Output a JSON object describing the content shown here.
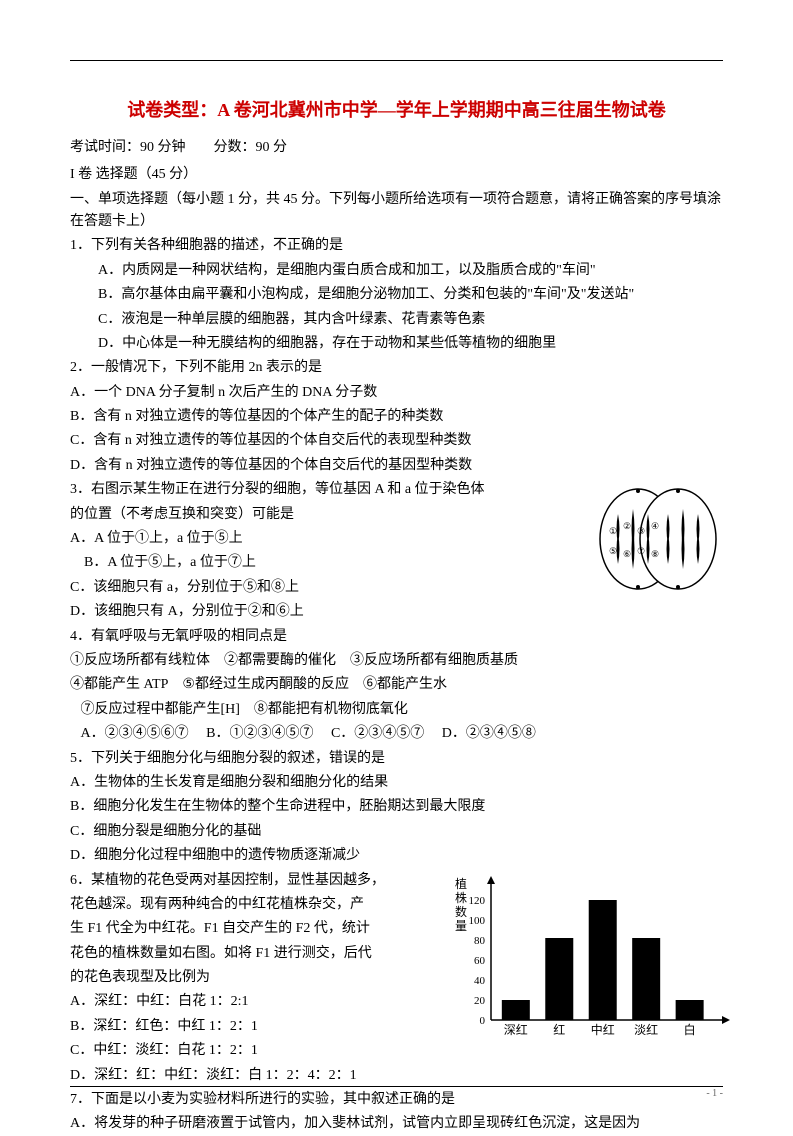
{
  "title": "试卷类型：A 卷河北冀州市中学—学年上学期期中高三往届生物试卷",
  "exam_info": "考试时间：90 分钟        分数：90 分",
  "section1": "I 卷 选择题（45 分）",
  "instruction": "一、单项选择题（每小题 1 分，共 45 分。下列每小题所给选项有一项符合题意，请将正确答案的序号填涂在答题卡上）",
  "q1": {
    "stem": "1．下列有关各种细胞器的描述，不正确的是",
    "a": "A．内质网是一种网状结构，是细胞内蛋白质合成和加工，以及脂质合成的\"车间\"",
    "b": "B．高尔基体由扁平囊和小泡构成，是细胞分泌物加工、分类和包装的\"车间\"及\"发送站\"",
    "c": "C．液泡是一种单层膜的细胞器，其内含叶绿素、花青素等色素",
    "d": "D．中心体是一种无膜结构的细胞器，存在于动物和某些低等植物的细胞里"
  },
  "q2": {
    "stem": "2．一般情况下，下列不能用 2n 表示的是",
    "a": "A．一个 DNA 分子复制 n 次后产生的 DNA 分子数",
    "b": "B．含有 n 对独立遗传的等位基因的个体产生的配子的种类数",
    "c": "C．含有 n 对独立遗传的等位基因的个体自交后代的表现型种类数",
    "d": "D．含有 n 对独立遗传的等位基因的个体自交后代的基因型种类数"
  },
  "q3": {
    "stem1": "3．右图示某生物正在进行分裂的细胞，等位基因 A 和 a 位于染色体",
    "stem2": "的位置（不考虑互换和突变）可能是",
    "a": "A．A 位于①上，a 位于⑤上",
    "b": "B．A 位于⑤上，a 位于⑦上",
    "c": "C．该细胞只有 a，分别位于⑤和⑧上",
    "d": "D．该细胞只有 A，分别位于②和⑥上"
  },
  "q4": {
    "stem": "4．有氧呼吸与无氧呼吸的相同点是",
    "line1": "①反应场所都有线粒体    ②都需要酶的催化    ③反应场所都有细胞质基质",
    "line2": "④都能产生 ATP    ⑤都经过生成丙酮酸的反应    ⑥都能产生水",
    "line3": "   ⑦反应过程中都能产生[H]    ⑧都能把有机物彻底氧化",
    "options": "   A．②③④⑤⑥⑦     B．①②③④⑤⑦     C．②③④⑤⑦     D．②③④⑤⑧"
  },
  "q5": {
    "stem": "5．下列关于细胞分化与细胞分裂的叙述，错误的是",
    "a": "A．生物体的生长发育是细胞分裂和细胞分化的结果",
    "b": "B．细胞分化发生在生物体的整个生命进程中，胚胎期达到最大限度",
    "c": "C．细胞分裂是细胞分化的基础",
    "d": "D．细胞分化过程中细胞中的遗传物质逐渐减少"
  },
  "q6": {
    "stem1": "6．某植物的花色受两对基因控制，显性基因越多，",
    "stem2": "花色越深。现有两种纯合的中红花植株杂交，产",
    "stem3": "生 F1 代全为中红花。F1 自交产生的 F2 代，统计",
    "stem4": "花色的植株数量如右图。如将 F1 进行测交，后代",
    "stem5": "的花色表现型及比例为",
    "a": "A．深红：中红：白花 1：2:1",
    "b": "B．深红：红色：中红 1：2：1",
    "c": "C．中红：淡红：白花 1：2：1",
    "d": "D．深红：红：中红：淡红：白 1：2：4：2：1"
  },
  "q7": {
    "stem": "7．下面是以小麦为实验材料所进行的实验，其中叙述正确的是",
    "a": "A．将发芽的种子研磨液置于试管内，加入斐林试剂，试管内立即呈现砖红色沉淀，这是因为"
  },
  "cell_diagram": {
    "labels": [
      "①",
      "②",
      "③",
      "④",
      "⑤",
      "⑥",
      "⑦",
      "⑧"
    ],
    "stroke": "#000000",
    "fill": "#ffffff"
  },
  "bar_chart": {
    "ylabel": "植株数量",
    "categories": [
      "深红",
      "红",
      "中红",
      "淡红",
      "白"
    ],
    "values": [
      20,
      82,
      120,
      82,
      20
    ],
    "yticks": [
      0,
      20,
      40,
      60,
      80,
      100,
      120
    ],
    "ymax": 130,
    "bar_color": "#000000",
    "axis_color": "#000000",
    "label_fontsize": 12
  },
  "page_num": "- 1 -"
}
